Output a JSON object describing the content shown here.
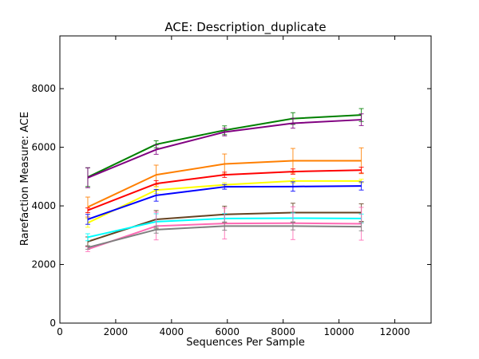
{
  "chart_data": {
    "type": "line",
    "title": "ACE: Description_duplicate",
    "xlabel": "Sequences Per Sample",
    "ylabel": "Rarefaction Measure: ACE",
    "xlim": [
      0,
      13300
    ],
    "ylim": [
      0,
      9800
    ],
    "xticks": [
      0,
      2000,
      4000,
      6000,
      8000,
      10000,
      12000
    ],
    "yticks": [
      0,
      2000,
      4000,
      6000,
      8000
    ],
    "grid": false,
    "x": [
      1000,
      3450,
      5900,
      8350,
      10800
    ],
    "series": [
      {
        "color": "#008000",
        "values": [
          4980,
          6100,
          6580,
          6980,
          7100
        ],
        "errors": [
          320,
          120,
          150,
          200,
          220
        ]
      },
      {
        "color": "#800080",
        "values": [
          4960,
          5920,
          6520,
          6820,
          6940
        ],
        "errors": [
          340,
          160,
          130,
          170,
          200
        ]
      },
      {
        "color": "#ff7f00",
        "values": [
          3960,
          5060,
          5430,
          5540,
          5540
        ],
        "errors": [
          340,
          330,
          340,
          420,
          440
        ]
      },
      {
        "color": "#ff0000",
        "values": [
          3850,
          4760,
          5060,
          5170,
          5220
        ],
        "errors": [
          80,
          100,
          90,
          90,
          100
        ]
      },
      {
        "color": "#ffff00",
        "values": [
          3420,
          4540,
          4720,
          4850,
          4850
        ],
        "errors": [
          150,
          120,
          70,
          80,
          60
        ]
      },
      {
        "color": "#0000ff",
        "values": [
          3540,
          4360,
          4650,
          4660,
          4680
        ],
        "errors": [
          170,
          200,
          80,
          160,
          140
        ]
      },
      {
        "color": "#654321",
        "values": [
          2780,
          3540,
          3710,
          3770,
          3770
        ],
        "errors": [
          160,
          300,
          280,
          320,
          300
        ]
      },
      {
        "color": "#00ffff",
        "values": [
          2930,
          3460,
          3570,
          3580,
          3570
        ],
        "errors": [
          120,
          270,
          170,
          180,
          150
        ]
      },
      {
        "color": "#ff69b4",
        "values": [
          2520,
          3310,
          3400,
          3410,
          3390
        ],
        "errors": [
          80,
          470,
          530,
          560,
          560
        ]
      },
      {
        "color": "#808080",
        "values": [
          2580,
          3190,
          3310,
          3310,
          3290
        ],
        "errors": [
          60,
          120,
          140,
          130,
          140
        ]
      }
    ]
  }
}
